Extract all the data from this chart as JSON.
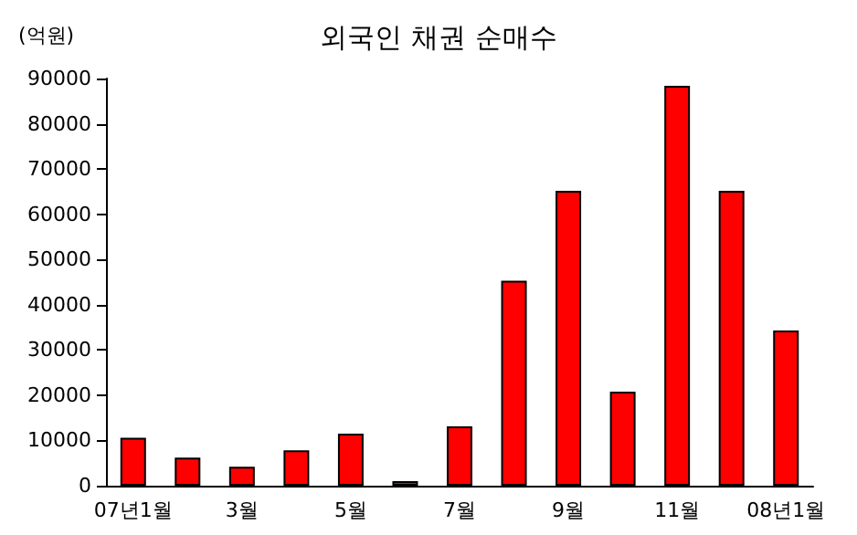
{
  "chart_data": {
    "type": "bar",
    "title": "외국인 채권 순매수",
    "ylabel": "(억원)",
    "categories": [
      "07년1월",
      null,
      "3월",
      null,
      "5월",
      null,
      "7월",
      null,
      "9월",
      null,
      "11월",
      null,
      "08년1월"
    ],
    "values": [
      10600,
      6200,
      4200,
      7800,
      11500,
      1000,
      13100,
      45300,
      65200,
      20800,
      88400,
      65200,
      34300
    ],
    "color": "#ff0000",
    "ylim": [
      0,
      90000
    ],
    "yticks": [
      0,
      10000,
      20000,
      30000,
      40000,
      50000,
      60000,
      70000,
      80000,
      90000
    ],
    "grid": false
  }
}
